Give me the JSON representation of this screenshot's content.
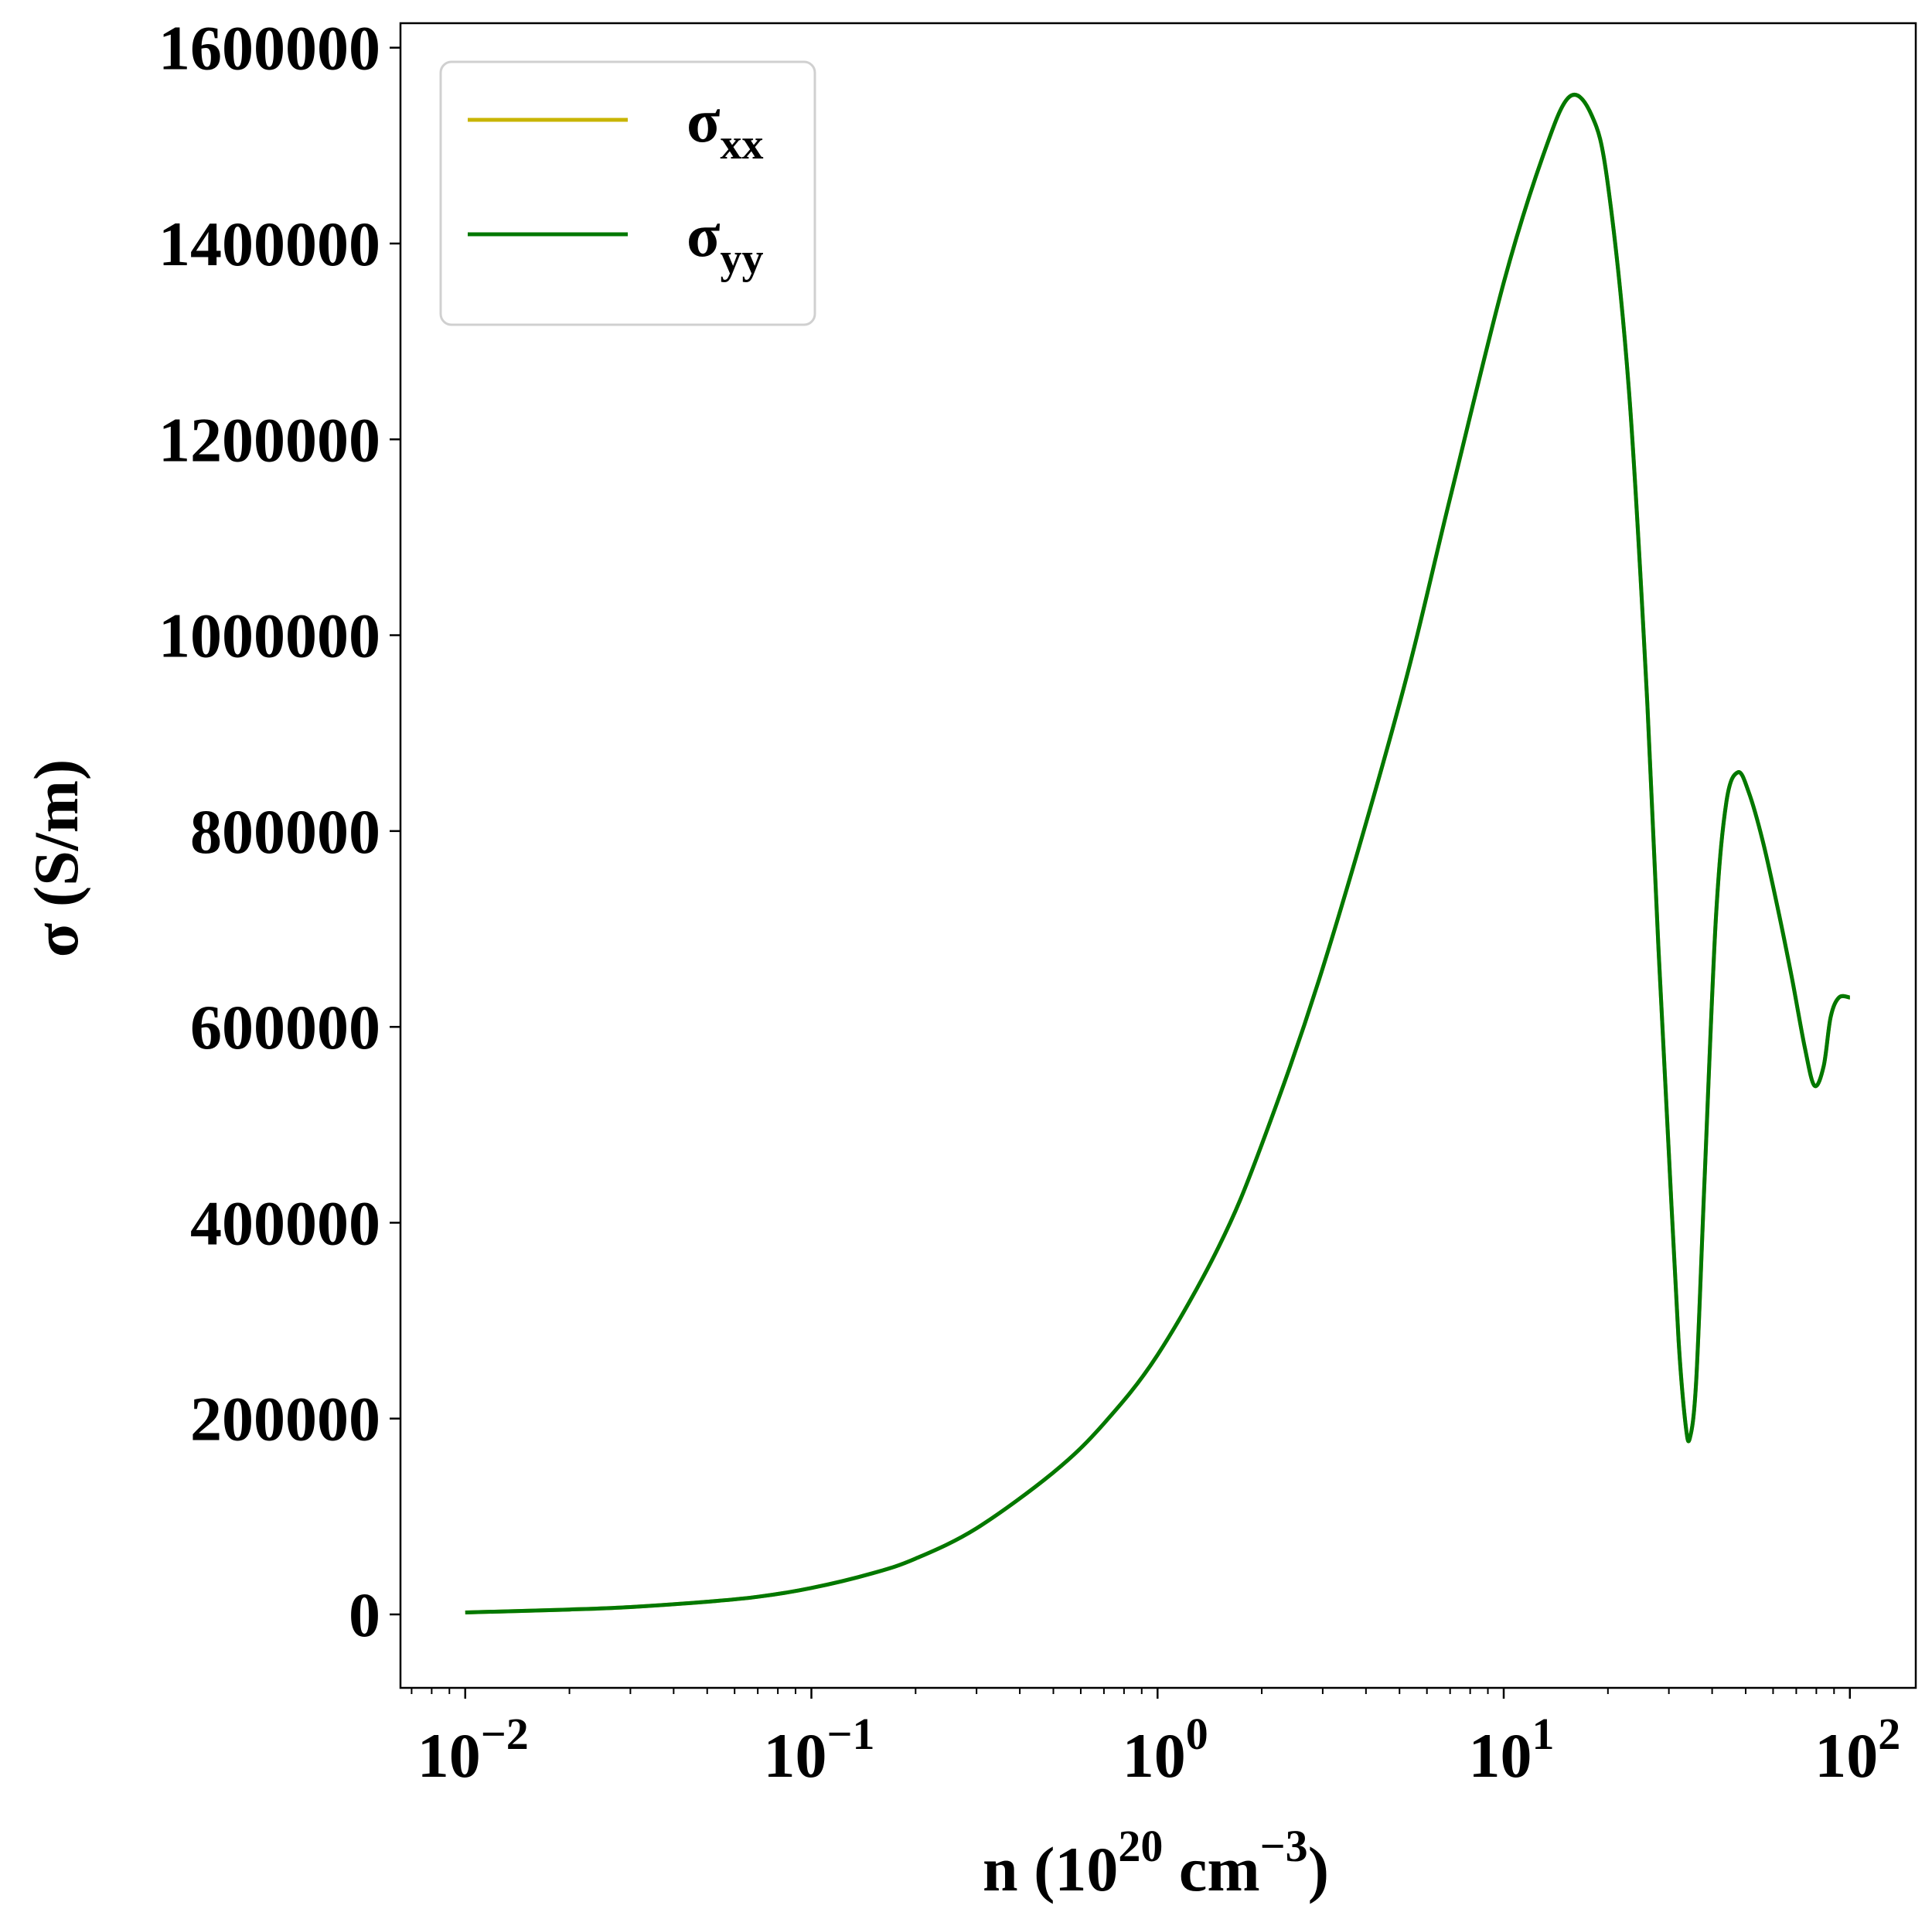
{
  "chart_data": {
    "type": "line",
    "xlabel": {
      "base": "n (10",
      "exp1": "20",
      "mid": " cm",
      "exp2": "−3",
      "end": ")"
    },
    "ylabel": "σ (S/m)",
    "xscale": "log",
    "xlim": [
      0.0065,
      155
    ],
    "ylim": [
      -75000,
      1625000
    ],
    "x_ticks": [
      {
        "value": 0.01,
        "base": "10",
        "exp": "−2"
      },
      {
        "value": 0.1,
        "base": "10",
        "exp": "−1"
      },
      {
        "value": 1,
        "base": "10",
        "exp": "0"
      },
      {
        "value": 10,
        "base": "10",
        "exp": "1"
      },
      {
        "value": 100,
        "base": "10",
        "exp": "2"
      }
    ],
    "y_ticks": [
      {
        "value": 0,
        "label": "0"
      },
      {
        "value": 200000,
        "label": "200000"
      },
      {
        "value": 400000,
        "label": "400000"
      },
      {
        "value": 600000,
        "label": "600000"
      },
      {
        "value": 800000,
        "label": "800000"
      },
      {
        "value": 1000000,
        "label": "1000000"
      },
      {
        "value": 1200000,
        "label": "1200000"
      },
      {
        "value": 1400000,
        "label": "1400000"
      },
      {
        "value": 1600000,
        "label": "1600000"
      }
    ],
    "grid": false,
    "legend_position": "top-left",
    "series": [
      {
        "name": "σ",
        "subscript": "xx",
        "color": "#c8b400",
        "x": [
          0.01,
          0.02,
          0.03,
          0.05,
          0.07,
          0.1,
          0.15,
          0.2,
          0.3,
          0.5,
          0.7,
          1.0,
          1.5,
          2.0,
          3.0,
          5.0,
          7.0,
          10.0,
          13.0,
          15.5,
          18.0,
          20.0,
          23.0,
          26.0,
          28.0,
          30.0,
          32.0,
          33.5,
          34.5,
          36.0,
          38.0,
          41.0,
          44.0,
          47.5,
          51.0,
          56.0,
          62.0,
          68.0,
          74.0,
          79.0,
          84.0,
          88.0,
          93.0,
          100.0
        ],
        "y": [
          2000,
          5000,
          7500,
          13000,
          18000,
          27000,
          42000,
          57000,
          88000,
          145000,
          195000,
          265000,
          375000,
          480000,
          660000,
          930000,
          1140000,
          1360000,
          1490000,
          1550000,
          1530000,
          1460000,
          1250000,
          930000,
          680000,
          470000,
          280000,
          195000,
          180000,
          240000,
          440000,
          710000,
          830000,
          860000,
          840000,
          790000,
          720000,
          650000,
          580000,
          540000,
          560000,
          610000,
          630000,
          630000
        ]
      },
      {
        "name": "σ",
        "subscript": "yy",
        "color": "#007800",
        "x": [
          0.01,
          0.02,
          0.03,
          0.05,
          0.07,
          0.1,
          0.15,
          0.2,
          0.3,
          0.5,
          0.7,
          1.0,
          1.5,
          2.0,
          3.0,
          5.0,
          7.0,
          10.0,
          13.0,
          15.5,
          18.0,
          20.0,
          23.0,
          26.0,
          28.0,
          30.0,
          32.0,
          33.5,
          34.5,
          36.0,
          38.0,
          41.0,
          44.0,
          47.5,
          51.0,
          56.0,
          62.0,
          68.0,
          74.0,
          79.0,
          84.0,
          88.0,
          93.0,
          100.0
        ],
        "y": [
          2000,
          5000,
          7500,
          13000,
          18000,
          27000,
          42000,
          57000,
          88000,
          145000,
          195000,
          265000,
          375000,
          480000,
          660000,
          930000,
          1140000,
          1360000,
          1490000,
          1550000,
          1530000,
          1460000,
          1250000,
          930000,
          680000,
          470000,
          280000,
          195000,
          180000,
          240000,
          440000,
          710000,
          830000,
          860000,
          840000,
          790000,
          720000,
          650000,
          580000,
          540000,
          560000,
          610000,
          630000,
          630000
        ]
      }
    ]
  }
}
